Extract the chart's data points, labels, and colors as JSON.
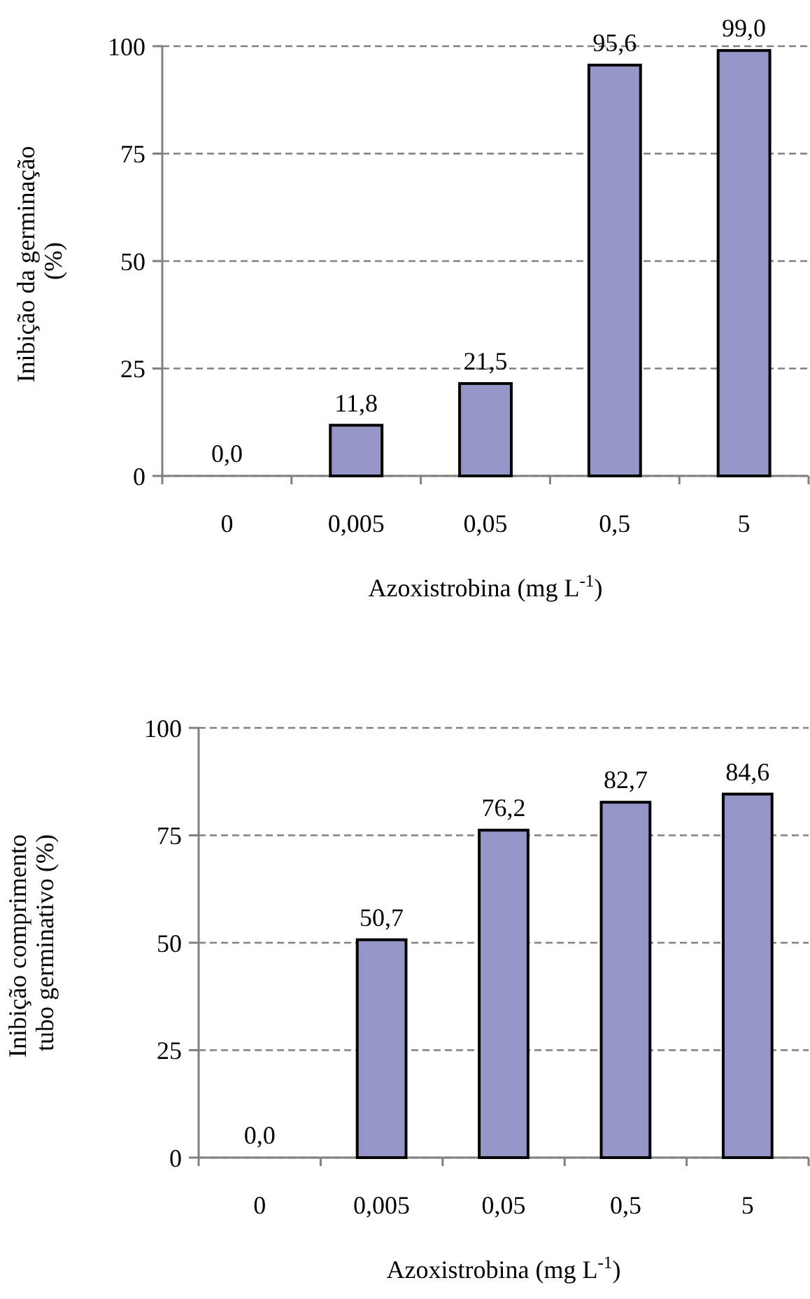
{
  "chart_data": [
    {
      "type": "bar",
      "ylabel": "Inibição da germinação  (%)",
      "xlabel": "Azoxistrobina (mg L$^{-1}$)",
      "categories": [
        "0",
        "0,005",
        "0,05",
        "0,5",
        "5"
      ],
      "values": [
        0.0,
        11.8,
        21.5,
        95.6,
        99.0
      ],
      "value_labels": [
        "0,0",
        "11,8",
        "21,5",
        "95,6",
        "99,0"
      ],
      "color": "#9595c8",
      "ylim": [
        0,
        100
      ],
      "yticks": [
        0,
        25,
        50,
        75,
        100
      ],
      "grid": "y"
    },
    {
      "type": "bar",
      "ylabel": "Inibição comprimento  tubo germinativo (%)",
      "xlabel": "Azoxistrobina (mg L$^{-1}$)",
      "categories": [
        "0",
        "0,005",
        "0,05",
        "0,5",
        "5"
      ],
      "values": [
        0.0,
        50.7,
        76.2,
        82.7,
        84.6
      ],
      "value_labels": [
        "0,0",
        "50,7",
        "76,2",
        "82,7",
        "84,6"
      ],
      "color": "#9595c8",
      "ylim": [
        0,
        100
      ],
      "yticks": [
        0,
        25,
        50,
        75,
        100
      ],
      "grid": "y"
    }
  ]
}
